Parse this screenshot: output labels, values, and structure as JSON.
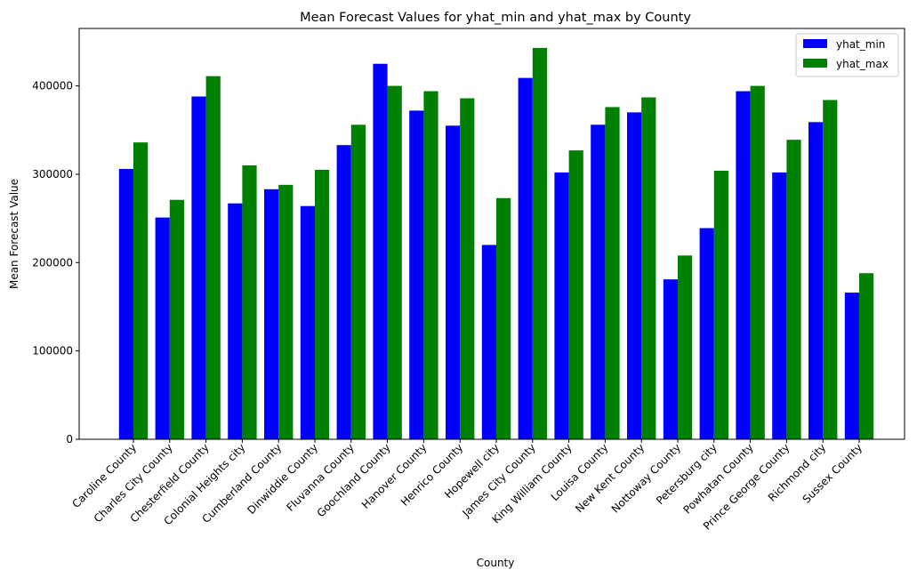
{
  "chart_data": {
    "type": "bar",
    "title": "Mean Forecast Values for yhat_min and yhat_max by County",
    "xlabel": "County",
    "ylabel": "Mean Forecast Value",
    "ylim": [
      0,
      465000
    ],
    "yticks": [
      0,
      100000,
      200000,
      300000,
      400000
    ],
    "ytick_labels": [
      "0",
      "100000",
      "200000",
      "300000",
      "400000"
    ],
    "grid": false,
    "legend_position": "top-right",
    "categories": [
      "Caroline County",
      "Charles City County",
      "Chesterfield County",
      "Colonial Heights city",
      "Cumberland County",
      "Dinwiddie County",
      "Fluvanna County",
      "Goochland County",
      "Hanover County",
      "Henrico County",
      "Hopewell city",
      "James City County",
      "King William County",
      "Louisa County",
      "New Kent County",
      "Nottoway County",
      "Petersburg city",
      "Powhatan County",
      "Prince George County",
      "Richmond city",
      "Sussex County"
    ],
    "series": [
      {
        "name": "yhat_min",
        "color": "#0000ff",
        "values": [
          306000,
          251000,
          388000,
          267000,
          283000,
          264000,
          333000,
          425000,
          372000,
          355000,
          220000,
          409000,
          302000,
          356000,
          370000,
          181000,
          239000,
          394000,
          302000,
          359000,
          166000
        ]
      },
      {
        "name": "yhat_max",
        "color": "#008000",
        "values": [
          336000,
          271000,
          411000,
          310000,
          288000,
          305000,
          356000,
          400000,
          394000,
          386000,
          273000,
          443000,
          327000,
          376000,
          387000,
          208000,
          304000,
          400000,
          339000,
          384000,
          188000
        ]
      }
    ]
  }
}
